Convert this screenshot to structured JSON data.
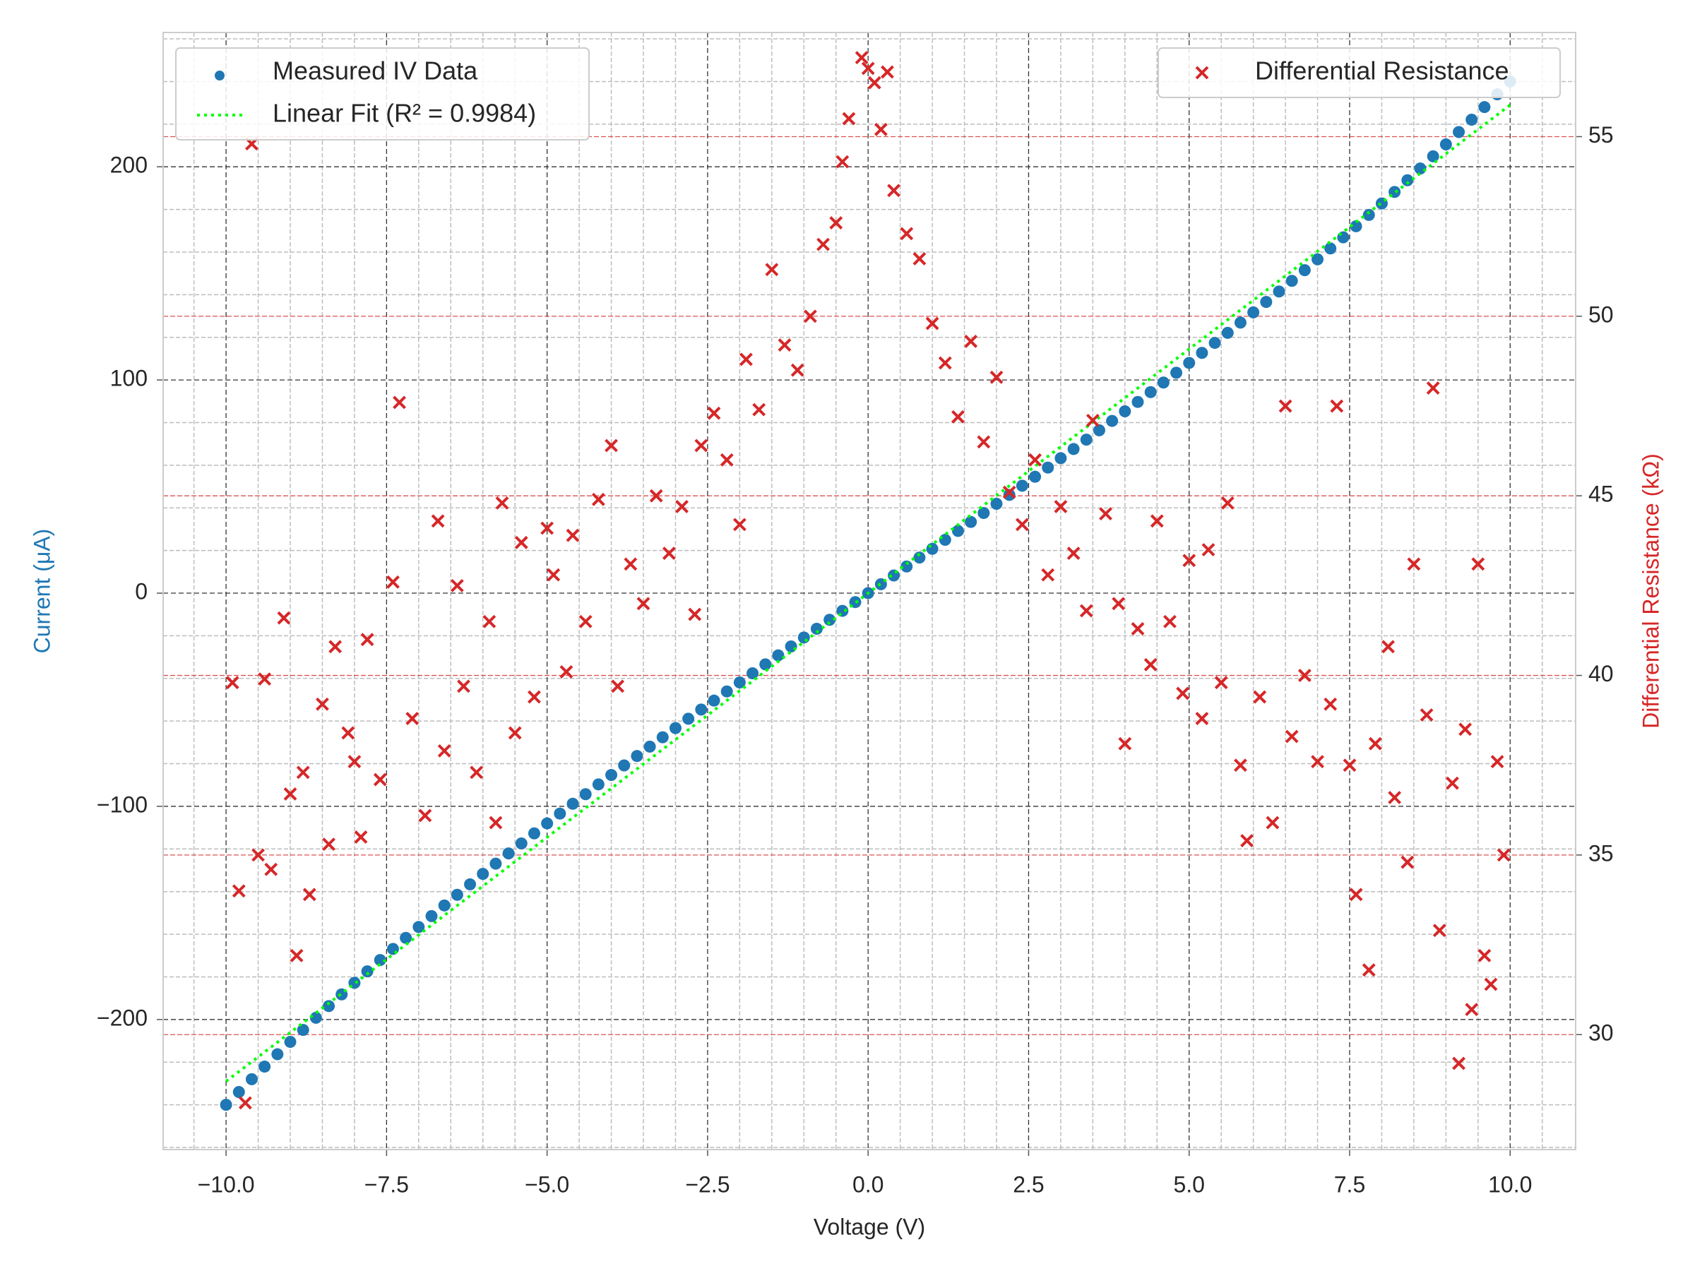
{
  "chart_data": {
    "type": "scatter",
    "xlabel": "Voltage (V)",
    "ylabel": "Current (μA)",
    "y2label": "Differential Resistance (kΩ)",
    "xlim": [
      -10.98,
      11.02
    ],
    "ylim": [
      -261,
      263
    ],
    "y2lim": [
      26.8,
      57.9
    ],
    "xticks": [
      {
        "value": -10,
        "label": "−10.0"
      },
      {
        "value": -7.5,
        "label": "−7.5"
      },
      {
        "value": -5,
        "label": "−5.0"
      },
      {
        "value": -2.5,
        "label": "−2.5"
      },
      {
        "value": 0,
        "label": "0.0"
      },
      2.5,
      {
        "value": 5,
        "label": "5.0"
      },
      7.5,
      {
        "value": 10,
        "label": "10.0"
      }
    ],
    "yticks": [
      {
        "value": -200,
        "label": "−200"
      },
      {
        "value": -100,
        "label": "−100"
      },
      0,
      100,
      200
    ],
    "y2ticks": [
      30,
      35,
      40,
      45,
      50,
      55
    ],
    "xminorticks": [
      -10.5,
      -9.5,
      -9,
      -8.5,
      -8,
      -7,
      -6.5,
      -6,
      -5.5,
      -4.5,
      -4,
      -3.5,
      -3,
      -2,
      -1.5,
      -1,
      -0.5,
      0.5,
      1,
      1.5,
      2,
      3,
      3.5,
      4,
      4.5,
      5.5,
      6,
      6.5,
      7,
      8,
      8.5,
      9,
      9.5,
      10.5
    ],
    "yminorticks": [
      -260,
      -240,
      -220,
      -180,
      -160,
      -140,
      -120,
      -80,
      -60,
      -40,
      -20,
      20,
      40,
      60,
      80,
      120,
      140,
      160,
      180,
      220,
      240,
      260
    ],
    "grid": true,
    "y2grid": true,
    "legend": "upper left",
    "y2legend": "upper right",
    "series": [
      {
        "name": "Measured IV Data",
        "type": "scatter",
        "marker": "o",
        "color": "#1f77b4",
        "x": [
          -10,
          -9.8,
          -9.6,
          -9.4,
          -9.2,
          -9,
          -8.8,
          -8.6,
          -8.4,
          -8.2,
          -8,
          -7.8,
          -7.6,
          -7.4,
          -7.2,
          -7,
          -6.8,
          -6.6,
          -6.4,
          -6.2,
          -6,
          -5.8,
          -5.6,
          -5.4,
          -5.2,
          -5,
          -4.8,
          -4.6,
          -4.4,
          -4.2,
          -4,
          -3.8,
          -3.6,
          -3.4,
          -3.2,
          -3,
          -2.8,
          -2.6,
          -2.4,
          -2.2,
          -2,
          -1.8,
          -1.6,
          -1.4,
          -1.2,
          -1,
          -0.8,
          -0.6,
          -0.4,
          -0.2,
          0,
          0.2,
          0.4,
          0.6,
          0.8,
          1,
          1.2,
          1.4,
          1.6,
          1.8,
          2,
          2.2,
          2.4,
          2.6,
          2.8,
          3,
          3.2,
          3.4,
          3.6,
          3.8,
          4,
          4.2,
          4.4,
          4.6,
          4.8,
          5,
          5.2,
          5.4,
          5.6,
          5.8,
          6,
          6.2,
          6.4,
          6.6,
          6.8,
          7,
          7.2,
          7.4,
          7.6,
          7.8,
          8,
          8.2,
          8.4,
          8.6,
          8.8,
          9,
          9.2,
          9.4,
          9.6,
          9.8,
          10
        ],
        "values": [
          -240,
          -234.0,
          -228.0,
          -222.1,
          -216.3,
          -210.5,
          -204.9,
          -199.2,
          -193.7,
          -188.2,
          -182.8,
          -177.4,
          -172.1,
          -166.9,
          -161.7,
          -156.6,
          -151.5,
          -146.5,
          -141.5,
          -136.6,
          -131.7,
          -126.9,
          -122.1,
          -117.4,
          -112.7,
          -108.0,
          -103.4,
          -98.8,
          -94.3,
          -89.7,
          -85.3,
          -80.8,
          -76.4,
          -72.0,
          -67.6,
          -63.3,
          -58.9,
          -54.6,
          -50.4,
          -46.1,
          -41.9,
          -37.6,
          -33.4,
          -29.2,
          -25.0,
          -20.8,
          -16.7,
          -12.5,
          -8.3,
          -4.2,
          0,
          4.2,
          8.3,
          12.5,
          16.7,
          20.8,
          25.0,
          29.2,
          33.4,
          37.6,
          41.9,
          46.1,
          50.4,
          54.6,
          58.9,
          63.3,
          67.6,
          72.0,
          76.4,
          80.8,
          85.3,
          89.7,
          94.3,
          98.8,
          103.4,
          108.0,
          112.7,
          117.4,
          122.1,
          126.9,
          131.7,
          136.6,
          141.5,
          146.5,
          151.5,
          156.6,
          161.7,
          166.9,
          172.1,
          177.4,
          182.8,
          188.2,
          193.7,
          199.2,
          204.9,
          210.5,
          216.3,
          222.1,
          228.0,
          234.0,
          240
        ]
      },
      {
        "name": "Linear Fit (R² = 0.9984)",
        "type": "line",
        "style": "dotted",
        "color": "#00ff00",
        "x": [
          -10,
          10
        ],
        "values": [
          -229,
          229
        ]
      },
      {
        "name": "Differential Resistance",
        "type": "scatter",
        "marker": "x",
        "color": "#d62728",
        "axis": "y2",
        "x": [
          -9.9,
          -9.8,
          -9.7,
          -9.6,
          -9.5,
          -9.4,
          -9.3,
          -9.1,
          -9.0,
          -8.9,
          -8.8,
          -8.7,
          -8.5,
          -8.4,
          -8.3,
          -8.1,
          -8.0,
          -7.9,
          -7.8,
          -7.6,
          -7.4,
          -7.3,
          -7.1,
          -6.9,
          -6.7,
          -6.6,
          -6.4,
          -6.3,
          -6.1,
          -5.9,
          -5.8,
          -5.7,
          -5.5,
          -5.4,
          -5.2,
          -5.0,
          -4.9,
          -4.7,
          -4.6,
          -4.4,
          -4.2,
          -4.0,
          -3.9,
          -3.7,
          -3.5,
          -3.3,
          -3.1,
          -2.9,
          -2.7,
          -2.6,
          -2.4,
          -2.2,
          -2.0,
          -1.9,
          -1.7,
          -1.5,
          -1.3,
          -1.1,
          -0.9,
          -0.7,
          -0.5,
          -0.4,
          -0.3,
          -0.1,
          0.0,
          0.1,
          0.2,
          0.3,
          0.4,
          0.6,
          0.8,
          1.0,
          1.2,
          1.4,
          1.6,
          1.8,
          2.0,
          2.2,
          2.4,
          2.6,
          2.8,
          3.0,
          3.2,
          3.4,
          3.5,
          3.7,
          3.9,
          4.0,
          4.2,
          4.4,
          4.5,
          4.7,
          4.9,
          5.0,
          5.2,
          5.3,
          5.5,
          5.6,
          5.8,
          5.9,
          6.1,
          6.3,
          6.5,
          6.6,
          6.8,
          7.0,
          7.2,
          7.3,
          7.5,
          7.6,
          7.8,
          7.9,
          8.1,
          8.2,
          8.4,
          8.5,
          8.7,
          8.8,
          8.9,
          9.1,
          9.2,
          9.3,
          9.4,
          9.5,
          9.6,
          9.7,
          9.8,
          9.9
        ],
        "values": [
          39.8,
          34.0,
          28.1,
          54.8,
          35.0,
          39.9,
          34.6,
          41.6,
          36.7,
          32.2,
          37.3,
          33.9,
          39.2,
          35.3,
          40.8,
          38.4,
          37.6,
          35.5,
          41.0,
          37.1,
          42.6,
          47.6,
          38.8,
          36.1,
          44.3,
          37.9,
          42.5,
          39.7,
          37.3,
          41.5,
          35.9,
          44.8,
          38.4,
          43.7,
          39.4,
          44.1,
          42.8,
          40.1,
          43.9,
          41.5,
          44.9,
          46.4,
          39.7,
          43.1,
          42.0,
          45.0,
          43.4,
          44.7,
          41.7,
          46.4,
          47.3,
          46.0,
          44.2,
          48.8,
          47.4,
          51.3,
          49.2,
          48.5,
          50.0,
          52.0,
          52.6,
          54.3,
          55.5,
          57.2,
          56.9,
          56.5,
          55.2,
          56.8,
          53.5,
          52.3,
          51.6,
          49.8,
          48.7,
          47.2,
          49.3,
          46.5,
          48.3,
          45.1,
          44.2,
          46.0,
          42.8,
          44.7,
          43.4,
          41.8,
          47.1,
          44.5,
          42.0,
          38.1,
          41.3,
          40.3,
          44.3,
          41.5,
          39.5,
          43.2,
          38.8,
          43.5,
          39.8,
          44.8,
          37.5,
          35.4,
          39.4,
          35.9,
          47.5,
          38.3,
          40.0,
          37.6,
          39.2,
          47.5,
          37.5,
          33.9,
          31.8,
          38.1,
          40.8,
          36.6,
          34.8,
          43.1,
          38.9,
          48.0,
          32.9,
          37.0,
          29.2,
          38.5,
          30.7,
          43.1,
          32.2,
          31.4,
          37.6,
          35.0
        ]
      }
    ]
  }
}
